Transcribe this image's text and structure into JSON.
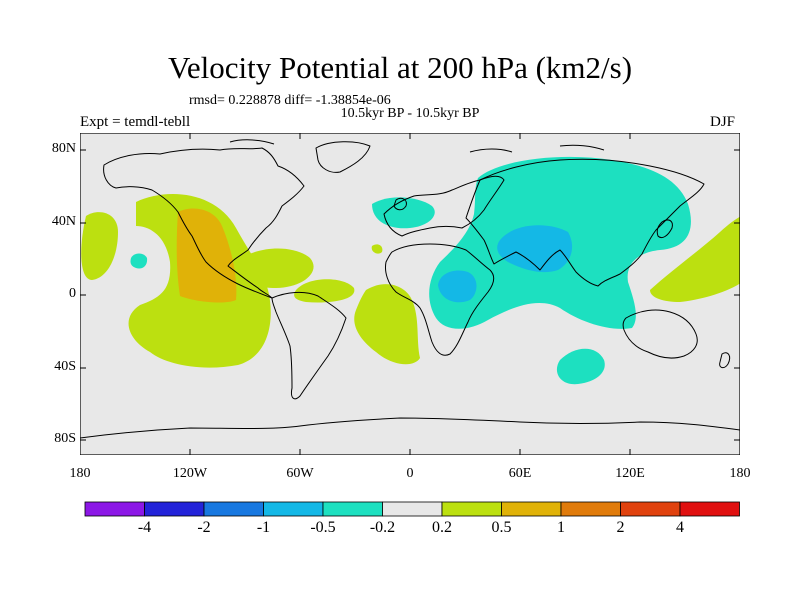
{
  "header": {
    "title": "Velocity Potential at 200 hPa (km2/s)",
    "stats": "rmsd= 0.228878 diff= -1.38854e-06",
    "period": "10.5kyr BP - 10.5kyr BP",
    "expt": "Expt = temdl-tebll",
    "season": "DJF"
  },
  "axes": {
    "lat_labels": [
      "80N",
      "40N",
      "0",
      "40S",
      "80S"
    ],
    "lon_labels": [
      "180",
      "120W",
      "60W",
      "0",
      "60E",
      "120E",
      "180"
    ]
  },
  "colorbar": {
    "labels": [
      "-4",
      "-2",
      "-1",
      "-0.5",
      "-0.2",
      "0.2",
      "0.5",
      "1",
      "2",
      "4"
    ],
    "colors": [
      "#8c17e6",
      "#2323d9",
      "#1878e0",
      "#14b8e6",
      "#1de0c0",
      "#e8e8e8",
      "#bce010",
      "#e0b208",
      "#e07b0b",
      "#e0420e",
      "#e01010"
    ]
  },
  "map": {
    "colors": {
      "background": "#e8e8e8",
      "positive_weak": "#bce010",
      "positive_mid": "#e0b208",
      "negative_weak": "#1de0c0",
      "negative_mid": "#14b8e6"
    }
  }
}
